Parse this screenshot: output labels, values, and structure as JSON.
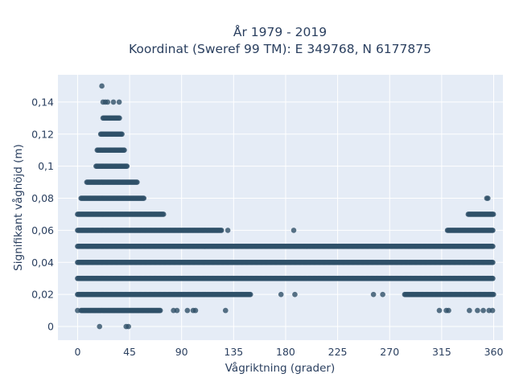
{
  "chart_data": {
    "type": "scatter",
    "title_line1": "År 1979 - 2019",
    "title_line2": "Koordinat (Sweref 99 TM): E 349768, N 6177875",
    "xlabel": "Vågriktning (grader)",
    "ylabel": "Signifikant våghöjd (m)",
    "xlim": [
      -17,
      368
    ],
    "ylim": [
      -0.0085,
      0.157
    ],
    "xticks": [
      0,
      45,
      90,
      135,
      180,
      225,
      270,
      315,
      360
    ],
    "yticks": [
      0,
      0.02,
      0.04,
      0.06,
      0.08,
      0.1,
      0.12,
      0.14
    ],
    "ytick_labels": [
      "0",
      "0,02",
      "0,04",
      "0,06",
      "0,08",
      "0,1",
      "0,12",
      "0,14"
    ],
    "marker_color": "#2f5068",
    "background": "#e5ecf6",
    "grid": true,
    "dense_ranges": [
      {
        "y": 0.01,
        "x_from": 3,
        "x_to": 72
      },
      {
        "y": 0.02,
        "x_from": 0,
        "x_to": 150
      },
      {
        "y": 0.02,
        "x_from": 283,
        "x_to": 360
      },
      {
        "y": 0.03,
        "x_from": 0,
        "x_to": 360
      },
      {
        "y": 0.04,
        "x_from": 0,
        "x_to": 360
      },
      {
        "y": 0.05,
        "x_from": 0,
        "x_to": 360
      },
      {
        "y": 0.06,
        "x_from": 0,
        "x_to": 125
      },
      {
        "y": 0.06,
        "x_from": 320,
        "x_to": 360
      },
      {
        "y": 0.07,
        "x_from": 0,
        "x_to": 75
      },
      {
        "y": 0.07,
        "x_from": 338,
        "x_to": 360
      },
      {
        "y": 0.08,
        "x_from": 3,
        "x_to": 58
      },
      {
        "y": 0.09,
        "x_from": 8,
        "x_to": 52
      },
      {
        "y": 0.1,
        "x_from": 16,
        "x_to": 43
      },
      {
        "y": 0.11,
        "x_from": 17,
        "x_to": 41
      },
      {
        "y": 0.12,
        "x_from": 20,
        "x_to": 39
      },
      {
        "y": 0.13,
        "x_from": 22,
        "x_to": 37
      }
    ],
    "scatter_points": [
      {
        "x": 0,
        "y": 0.01
      },
      {
        "x": 83,
        "y": 0.01
      },
      {
        "x": 86,
        "y": 0.01
      },
      {
        "x": 95,
        "y": 0.01
      },
      {
        "x": 100,
        "y": 0.01
      },
      {
        "x": 102,
        "y": 0.01
      },
      {
        "x": 128,
        "y": 0.01
      },
      {
        "x": 313,
        "y": 0.01
      },
      {
        "x": 319,
        "y": 0.01
      },
      {
        "x": 321,
        "y": 0.01
      },
      {
        "x": 339,
        "y": 0.01
      },
      {
        "x": 346,
        "y": 0.01
      },
      {
        "x": 351,
        "y": 0.01
      },
      {
        "x": 356,
        "y": 0.01
      },
      {
        "x": 359,
        "y": 0.01
      },
      {
        "x": 176,
        "y": 0.02
      },
      {
        "x": 188,
        "y": 0.02
      },
      {
        "x": 256,
        "y": 0.02
      },
      {
        "x": 264,
        "y": 0.02
      },
      {
        "x": 130,
        "y": 0.06
      },
      {
        "x": 187,
        "y": 0.06
      },
      {
        "x": 22,
        "y": 0.14
      },
      {
        "x": 24,
        "y": 0.14
      },
      {
        "x": 26,
        "y": 0.14
      },
      {
        "x": 31,
        "y": 0.14
      },
      {
        "x": 36,
        "y": 0.14
      },
      {
        "x": 21,
        "y": 0.15
      },
      {
        "x": 19,
        "y": 0.0
      },
      {
        "x": 42,
        "y": 0.0
      },
      {
        "x": 44,
        "y": 0.0
      },
      {
        "x": 354,
        "y": 0.08
      },
      {
        "x": 355,
        "y": 0.08
      }
    ]
  }
}
